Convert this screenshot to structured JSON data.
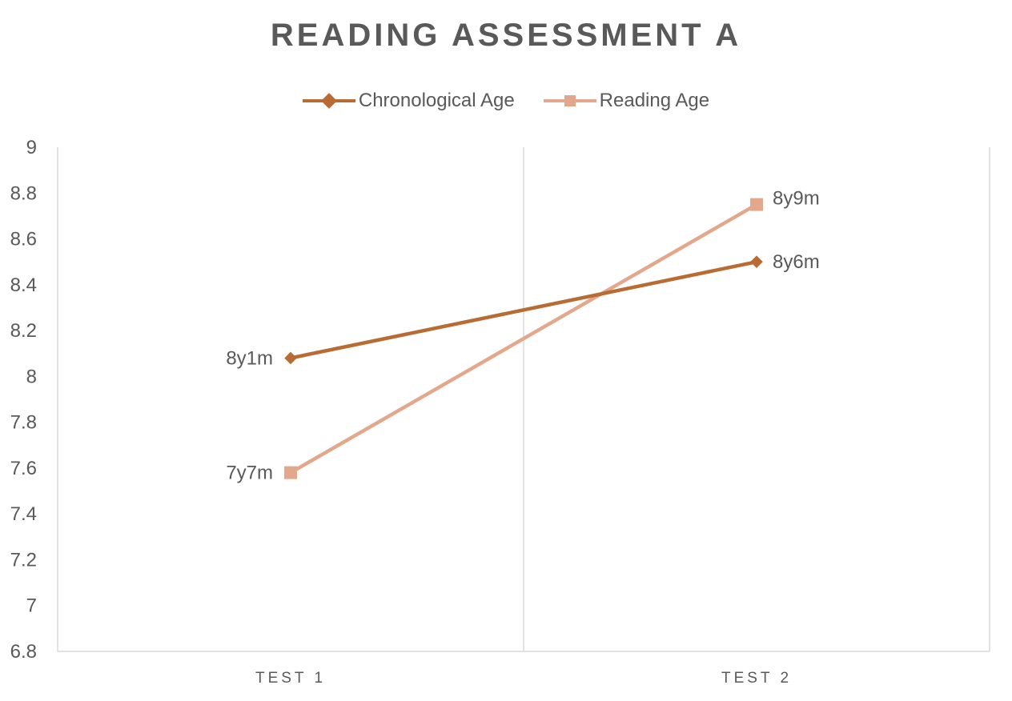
{
  "chart_data": {
    "type": "line",
    "title": "READING ASSESSMENT A",
    "categories": [
      "TEST 1",
      "TEST 2"
    ],
    "ylim": [
      6.8,
      9
    ],
    "yticks": [
      "9",
      "8.8",
      "8.6",
      "8.4",
      "8.2",
      "8",
      "7.8",
      "7.6",
      "7.4",
      "7.2",
      "7",
      "6.8"
    ],
    "grid": "vertical",
    "legend_position": "top",
    "series": [
      {
        "name": "Chronological Age",
        "values": [
          8.08,
          8.5
        ],
        "data_labels": [
          "8y1m",
          "8y6m"
        ],
        "color": "#b86b32",
        "marker": "diamond"
      },
      {
        "name": "Reading Age",
        "values": [
          7.58,
          8.75
        ],
        "data_labels": [
          "7y7m",
          "8y9m"
        ],
        "color": "#e3a88c",
        "marker": "square"
      }
    ]
  }
}
